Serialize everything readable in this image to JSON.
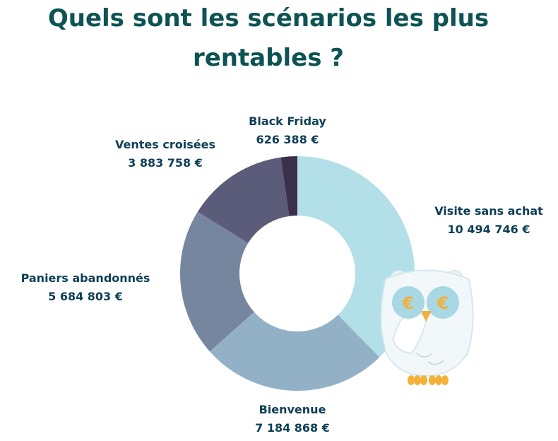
{
  "title": "Quels sont les scénarios les plus rentables ?",
  "title_lines": [
    "Quels sont les scénarios les plus",
    "rentables ?"
  ],
  "chart_data": {
    "type": "pie",
    "title": "Quels sont les scénarios les plus rentables ?",
    "donut": true,
    "unit": "€",
    "slices": [
      {
        "label": "Visite sans achat",
        "value": 10494746,
        "value_text": "10 494 746 €",
        "color": "#b3dfe9"
      },
      {
        "label": "Bienvenue",
        "value": 7184868,
        "value_text": "7 184 868 €",
        "color": "#93b1c6"
      },
      {
        "label": "Paniers abandonnés",
        "value": 5684803,
        "value_text": "5 684 803 €",
        "color": "#76869f"
      },
      {
        "label": "Ventes croisées",
        "value": 3883758,
        "value_text": "3 883 758 €",
        "color": "#5b5b7a"
      },
      {
        "label": "Black Friday",
        "value": 626388,
        "value_text": "626 388 €",
        "color": "#3b2f4a"
      }
    ]
  },
  "mascot": {
    "icon": "owl-mascot-icon",
    "eye_symbol": "€",
    "colors": {
      "body": "#e9f3f6",
      "eyes": "#a8d8e4",
      "accent": "#f3b13a"
    }
  }
}
